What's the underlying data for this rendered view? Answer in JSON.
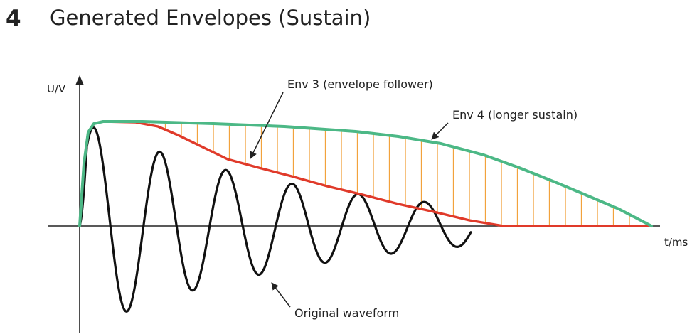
{
  "header": {
    "number": "4",
    "title": "Generated Envelopes (Sustain)"
  },
  "axes": {
    "y_label": "U/V",
    "x_label": "t/ms"
  },
  "annotations": {
    "env3": "Env 3 (envelope follower)",
    "env4": "Env 4 (longer sustain)",
    "waveform": "Original waveform"
  },
  "colors": {
    "env3": "#e03a2a",
    "env4": "#4cb886",
    "waveform": "#111111",
    "hatch": "#f2a23c",
    "axis": "#222222"
  }
}
